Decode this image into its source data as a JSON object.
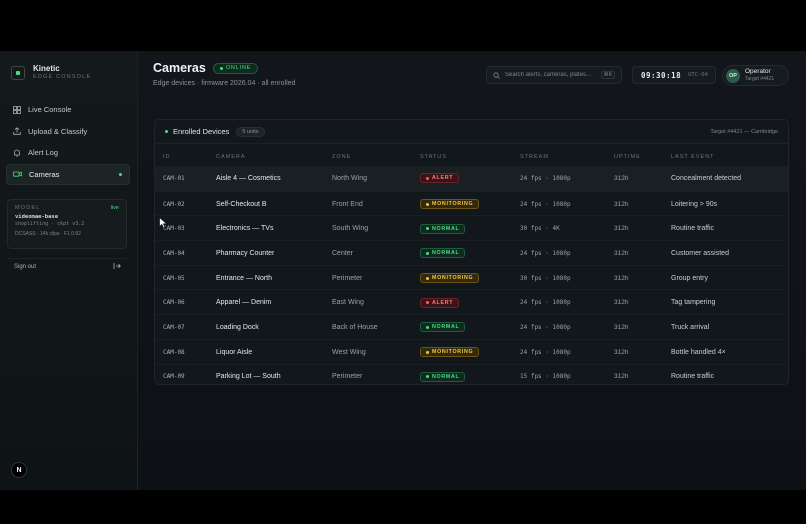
{
  "brand": {
    "name": "Kinetic",
    "subtitle": "EDGE CONSOLE"
  },
  "nav": {
    "items": [
      {
        "label": "Live Console",
        "icon": "grid-icon"
      },
      {
        "label": "Upload & Classify",
        "icon": "upload-icon"
      },
      {
        "label": "Alert Log",
        "icon": "bell-icon"
      },
      {
        "label": "Cameras",
        "icon": "camera-icon",
        "active": true
      }
    ]
  },
  "model": {
    "label": "MODEL",
    "status": "live",
    "name": "videomae-base",
    "version": "shoplifting · ckpt v3.2",
    "stats": "DCSASS · 14k clips · F1 0.82"
  },
  "signout": {
    "label": "Sign out"
  },
  "header": {
    "title": "Cameras",
    "status": "ONLINE",
    "subtitle": "Edge devices · firmware 2026.04 · all enrolled"
  },
  "search": {
    "placeholder": "Search alerts, cameras, plates...",
    "shortcut": "⌘K"
  },
  "clock": {
    "time": "09:30:18",
    "tz": "UTC-04"
  },
  "operator": {
    "initials": "OP",
    "name": "Operator",
    "id": "Target #4421"
  },
  "table": {
    "title": "Enrolled Devices",
    "count": "9 units",
    "target": "Target #4421 — Cambridge",
    "columns": [
      "ID",
      "CAMERA",
      "ZONE",
      "STATUS",
      "STREAM",
      "UPTIME",
      "LAST EVENT"
    ],
    "rows": [
      {
        "id": "CAM-01",
        "camera": "Aisle 4 — Cosmetics",
        "zone": "North Wing",
        "status": "ALERT",
        "kind": "alert",
        "stream": "24 fps · 1080p",
        "uptime": "312h",
        "event": "Concealment detected"
      },
      {
        "id": "CAM-02",
        "camera": "Self-Checkout B",
        "zone": "Front End",
        "status": "MONITORING",
        "kind": "monitoring",
        "stream": "24 fps · 1080p",
        "uptime": "312h",
        "event": "Loitering > 90s"
      },
      {
        "id": "CAM-03",
        "camera": "Electronics — TVs",
        "zone": "South Wing",
        "status": "NORMAL",
        "kind": "normal",
        "stream": "30 fps · 4K",
        "uptime": "312h",
        "event": "Routine traffic"
      },
      {
        "id": "CAM-04",
        "camera": "Pharmacy Counter",
        "zone": "Center",
        "status": "NORMAL",
        "kind": "normal",
        "stream": "24 fps · 1080p",
        "uptime": "312h",
        "event": "Customer assisted"
      },
      {
        "id": "CAM-05",
        "camera": "Entrance — North",
        "zone": "Perimeter",
        "status": "MONITORING",
        "kind": "monitoring",
        "stream": "30 fps · 1080p",
        "uptime": "312h",
        "event": "Group entry"
      },
      {
        "id": "CAM-06",
        "camera": "Apparel — Denim",
        "zone": "East Wing",
        "status": "ALERT",
        "kind": "alert",
        "stream": "24 fps · 1080p",
        "uptime": "312h",
        "event": "Tag tampering"
      },
      {
        "id": "CAM-07",
        "camera": "Loading Dock",
        "zone": "Back of House",
        "status": "NORMAL",
        "kind": "normal",
        "stream": "24 fps · 1080p",
        "uptime": "312h",
        "event": "Truck arrival"
      },
      {
        "id": "CAM-08",
        "camera": "Liquor Aisle",
        "zone": "West Wing",
        "status": "MONITORING",
        "kind": "monitoring",
        "stream": "24 fps · 1080p",
        "uptime": "312h",
        "event": "Bottle handled 4×"
      },
      {
        "id": "CAM-09",
        "camera": "Parking Lot — South",
        "zone": "Perimeter",
        "status": "NORMAL",
        "kind": "normal",
        "stream": "15 fps · 1080p",
        "uptime": "312h",
        "event": "Routine traffic"
      }
    ]
  },
  "colors": {
    "accent": "#4ade80",
    "alert": "#ff5c5c",
    "monitoring": "#f5c542",
    "background": "#12161b"
  }
}
